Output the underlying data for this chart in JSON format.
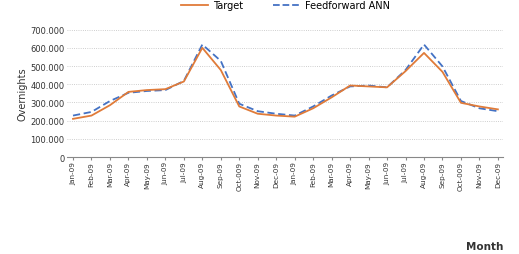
{
  "x_labels": [
    "Jan-09",
    "Feb-09",
    "Mar-09",
    "Apr-09",
    "May-09",
    "Jun-09",
    "Jul-09",
    "Aug-09",
    "Sep-09",
    "Oct-009",
    "Nov-09",
    "Dec-09",
    "Jan-09",
    "Feb-09",
    "Mar-09",
    "Apr-09",
    "May-09",
    "Jun-09",
    "Jul-09",
    "Aug-09",
    "Sep-09",
    "Oct-009",
    "Nov-09",
    "Dec-09"
  ],
  "target_values": [
    210000,
    228000,
    285000,
    358000,
    368000,
    373000,
    415000,
    600000,
    478000,
    278000,
    238000,
    228000,
    222000,
    268000,
    328000,
    393000,
    388000,
    383000,
    472000,
    572000,
    468000,
    298000,
    278000,
    262000
  ],
  "ann_values": [
    228000,
    248000,
    308000,
    353000,
    363000,
    368000,
    418000,
    618000,
    528000,
    293000,
    252000,
    238000,
    228000,
    278000,
    338000,
    388000,
    393000,
    383000,
    478000,
    618000,
    498000,
    308000,
    268000,
    252000
  ],
  "target_color": "#E07B39",
  "ann_color": "#4472C4",
  "ylim": [
    0,
    700000
  ],
  "yticks": [
    0,
    100000,
    200000,
    300000,
    400000,
    500000,
    600000,
    700000
  ],
  "ytick_labels": [
    "0",
    "100.000",
    "200.000",
    "300.000",
    "400.000",
    "500.000",
    "600.000",
    "700.000"
  ],
  "ylabel": "Overnights",
  "xlabel": "Month",
  "legend_target": "Target",
  "legend_ann": "Feedforward ANN",
  "bg_color": "#FFFFFF",
  "grid_color": "#BEBEBE"
}
